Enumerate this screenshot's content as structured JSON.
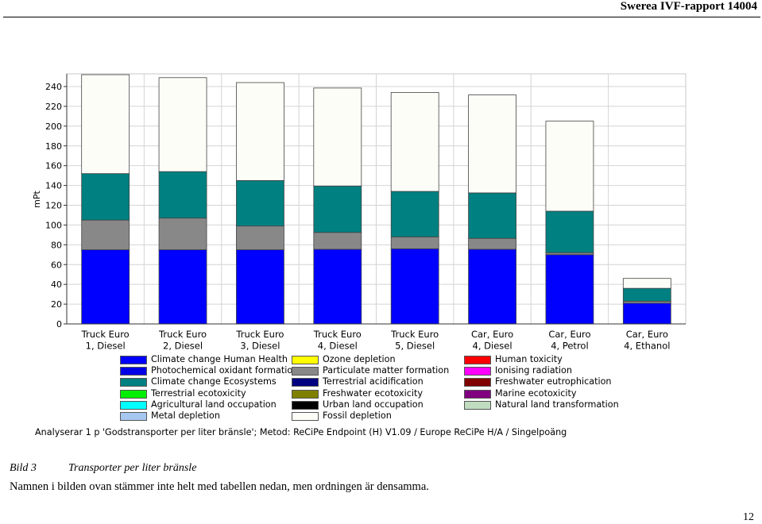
{
  "header": {
    "title": "Swerea IVF-rapport 14004"
  },
  "chart_data": {
    "type": "bar",
    "stacked": true,
    "ylabel": "mPt",
    "xlabel": "",
    "ylim": [
      0,
      240
    ],
    "yticks": [
      0,
      20,
      40,
      60,
      80,
      100,
      120,
      140,
      160,
      180,
      200,
      220,
      240
    ],
    "grid": true,
    "categories": [
      [
        "Truck Euro",
        "1, Diesel"
      ],
      [
        "Truck Euro",
        "2, Diesel"
      ],
      [
        "Truck Euro",
        "3, Diesel"
      ],
      [
        "Truck Euro",
        "4, Diesel"
      ],
      [
        "Truck Euro",
        "5, Diesel"
      ],
      [
        "Car, Euro",
        "4, Diesel"
      ],
      [
        "Car, Euro",
        "4, Petrol"
      ],
      [
        "Car, Euro",
        "4, Ethanol"
      ]
    ],
    "series": [
      {
        "name": "Climate change Human Health",
        "color": "#0000ff",
        "values": [
          75,
          75,
          75,
          75.5,
          76,
          75.5,
          70,
          21
        ]
      },
      {
        "name": "Particulate matter formation",
        "color": "#888888",
        "values": [
          30,
          32,
          24,
          17,
          12,
          11,
          2,
          2
        ]
      },
      {
        "name": "Climate change Ecosystems",
        "color": "#008080",
        "values": [
          47,
          47,
          46,
          47,
          46,
          46,
          42,
          13
        ]
      },
      {
        "name": "Fossil depletion",
        "color": "#fdfdf8",
        "values": [
          100,
          95,
          99,
          99,
          100,
          99,
          91,
          10
        ]
      }
    ],
    "legend": {
      "placement": "bottom",
      "entries": [
        {
          "name": "Climate change Human Health",
          "color": "#0000ff"
        },
        {
          "name": "Photochemical oxidant formation",
          "color": "#0000e6"
        },
        {
          "name": "Climate change Ecosystems",
          "color": "#008080"
        },
        {
          "name": "Terrestrial ecotoxicity",
          "color": "#00ee00"
        },
        {
          "name": "Agricultural land occupation",
          "color": "#00ffff"
        },
        {
          "name": "Metal depletion",
          "color": "#a6c8f0"
        },
        {
          "name": "Ozone depletion",
          "color": "#ffff00"
        },
        {
          "name": "Particulate matter formation",
          "color": "#888888"
        },
        {
          "name": "Terrestrial acidification",
          "color": "#000080"
        },
        {
          "name": "Freshwater ecotoxicity",
          "color": "#808000"
        },
        {
          "name": "Urban land occupation",
          "color": "#000000"
        },
        {
          "name": "Fossil depletion",
          "color": "#fdfdf8"
        },
        {
          "name": "Human toxicity",
          "color": "#ff0000"
        },
        {
          "name": "Ionising radiation",
          "color": "#ff00ff"
        },
        {
          "name": "Freshwater eutrophication",
          "color": "#800000"
        },
        {
          "name": "Marine ecotoxicity",
          "color": "#800080"
        },
        {
          "name": "Natural land transformation",
          "color": "#c0dcc0"
        }
      ]
    }
  },
  "analysis_text": "Analyserar 1 p 'Godstransporter per liter bränsle'; Metod: ReCiPe Endpoint (H) V1.09 / Europe ReCiPe H/A / Singelpoäng",
  "caption": {
    "number": "Bild 3",
    "text": "Transporter per liter bränsle"
  },
  "note": "Namnen i bilden ovan stämmer inte helt med tabellen nedan, men ordningen är densamma.",
  "page_number": "12"
}
